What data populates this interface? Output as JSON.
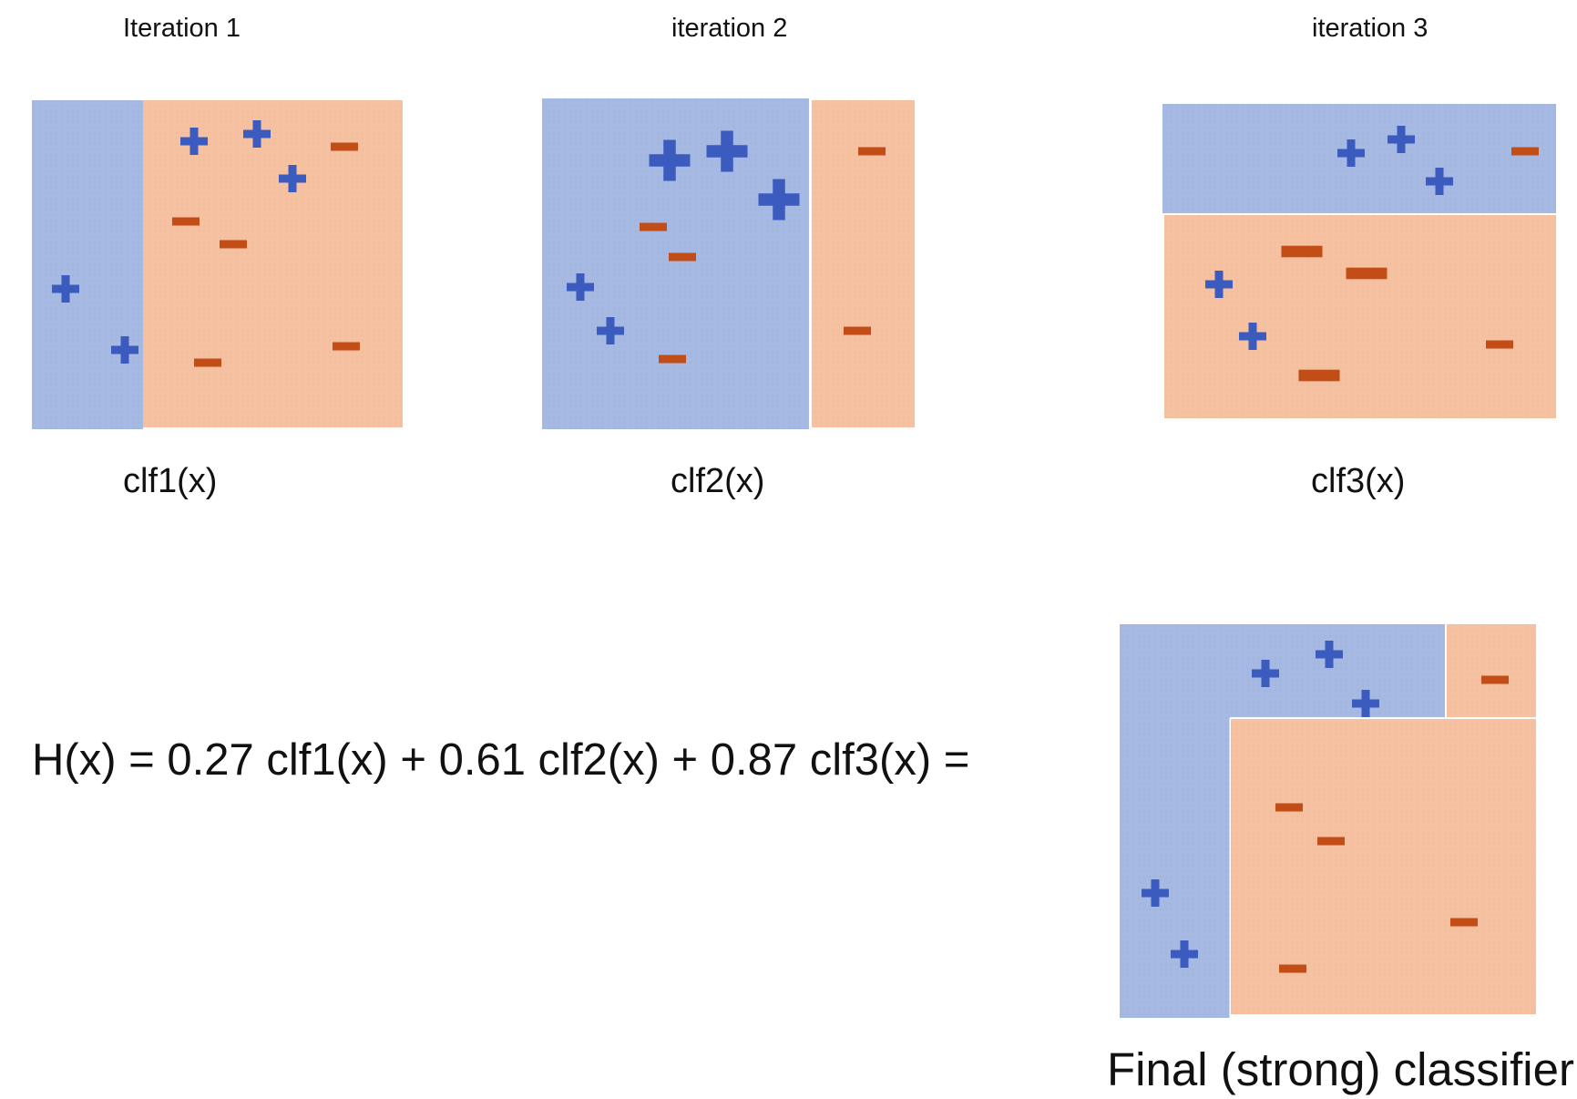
{
  "colors": {
    "positive_region": "#a6b9e3",
    "negative_region": "#f6c1a0",
    "plus_marker": "#3b5bbf",
    "minus_marker": "#c34d16"
  },
  "iterations": [
    {
      "title": "Iteration 1",
      "classifier": "clf1(x)"
    },
    {
      "title": "iteration 2",
      "classifier": "clf2(x)"
    },
    {
      "title": "iteration 3",
      "classifier": "clf3(x)"
    }
  ],
  "formula": "H(x) = 0.27 clf1(x) + 0.61 clf2(x) + 0.87 clf3(x) =",
  "final": {
    "caption": "Final (strong) classifier"
  },
  "marker_types": [
    "plus",
    "minus"
  ]
}
